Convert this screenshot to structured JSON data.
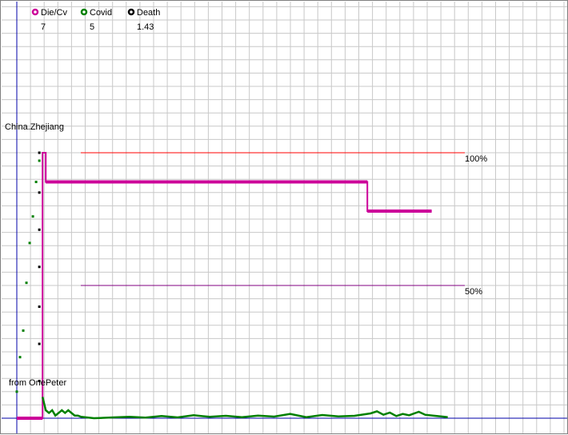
{
  "chart_data": {
    "type": "line",
    "title": "",
    "region": "China.Zhejiang",
    "credit": "from OnePeter",
    "legend": [
      {
        "key": "die_cv",
        "label": "Die/Cv",
        "value": "7",
        "color": "#cc0099"
      },
      {
        "key": "covid",
        "label": "Covid",
        "value": "5",
        "color": "#008000"
      },
      {
        "key": "death",
        "label": "Death",
        "value": "1.43",
        "color": "#000000"
      }
    ],
    "reference_lines": [
      {
        "label": "100%",
        "color": "#ff0000"
      },
      {
        "label": "50%",
        "color": "#800080"
      }
    ],
    "series": [
      {
        "name": "Die/Cv",
        "color": "#cc0099",
        "points": [
          [
            0,
            0
          ],
          [
            8,
            0
          ],
          [
            8,
            100
          ],
          [
            9,
            100
          ],
          [
            9,
            89
          ],
          [
            109,
            89
          ],
          [
            109,
            78
          ],
          [
            129,
            78
          ]
        ]
      },
      {
        "name": "Covid",
        "color": "#008000",
        "points": [
          [
            0,
            10
          ],
          [
            1,
            23
          ],
          [
            2,
            33
          ],
          [
            3,
            51
          ],
          [
            4,
            66
          ],
          [
            5,
            76
          ],
          [
            6,
            89
          ],
          [
            7,
            97
          ],
          [
            8,
            8
          ],
          [
            9,
            3
          ],
          [
            10,
            2
          ],
          [
            11,
            3
          ],
          [
            12,
            1
          ],
          [
            13,
            2
          ],
          [
            14,
            3
          ],
          [
            15,
            2
          ],
          [
            16,
            3
          ],
          [
            17,
            2
          ],
          [
            18,
            1
          ],
          [
            19,
            1
          ],
          [
            20,
            0.5
          ],
          [
            24,
            0
          ],
          [
            30,
            0.3
          ],
          [
            35,
            0.5
          ],
          [
            40,
            0.2
          ],
          [
            45,
            0.8
          ],
          [
            50,
            0.3
          ],
          [
            55,
            1.1
          ],
          [
            60,
            0.5
          ],
          [
            65,
            0.9
          ],
          [
            70,
            0.4
          ],
          [
            75,
            1
          ],
          [
            80,
            0.6
          ],
          [
            85,
            1.6
          ],
          [
            90,
            0.4
          ],
          [
            95,
            1.2
          ],
          [
            100,
            0.7
          ],
          [
            105,
            0.9
          ],
          [
            110,
            1.8
          ],
          [
            112,
            2.6
          ],
          [
            114,
            1.3
          ],
          [
            116,
            2.1
          ],
          [
            118,
            0.8
          ],
          [
            120,
            1.6
          ],
          [
            122,
            1.1
          ],
          [
            125,
            2.4
          ],
          [
            127,
            1.3
          ],
          [
            130,
            0.9
          ],
          [
            133,
            0.5
          ],
          [
            134,
            0.4
          ]
        ]
      },
      {
        "name": "Death",
        "color": "#000000",
        "points": [
          [
            7,
            100
          ],
          [
            7,
            85
          ],
          [
            7,
            71
          ],
          [
            7,
            57
          ],
          [
            7,
            42
          ],
          [
            7,
            28
          ],
          [
            7,
            14
          ]
        ]
      }
    ],
    "grid": true
  }
}
